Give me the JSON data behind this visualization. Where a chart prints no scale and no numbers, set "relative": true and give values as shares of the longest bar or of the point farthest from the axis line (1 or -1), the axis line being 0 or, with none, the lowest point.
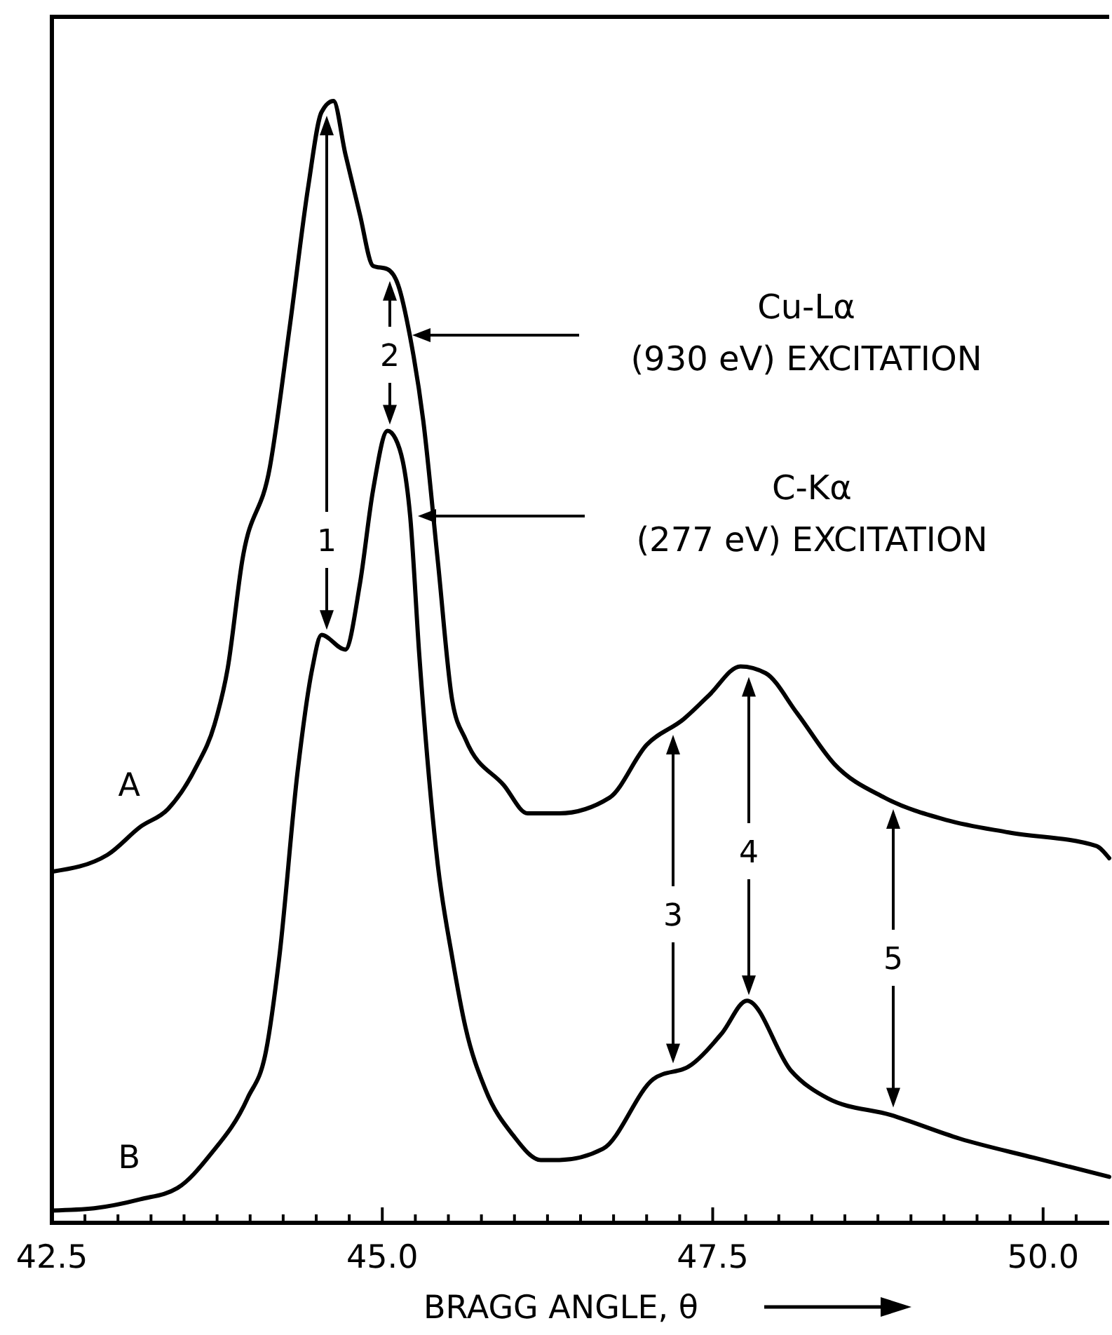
{
  "chart_data": {
    "type": "line",
    "relative": true,
    "xlabel": "BRAGG ANGLE, θ",
    "xlim": [
      42.5,
      50.5
    ],
    "xticks": [
      {
        "value": 42.5,
        "label": "42.5"
      },
      {
        "value": 42.75,
        "label": null
      },
      {
        "value": 43,
        "label": null
      },
      {
        "value": 43.25,
        "label": null
      },
      {
        "value": 43.5,
        "label": null
      },
      {
        "value": 43.75,
        "label": null
      },
      {
        "value": 44,
        "label": null
      },
      {
        "value": 44.25,
        "label": null
      },
      {
        "value": 44.5,
        "label": null
      },
      {
        "value": 44.75,
        "label": null
      },
      {
        "value": 45,
        "label": "45.0"
      },
      {
        "value": 45.25,
        "label": null
      },
      {
        "value": 45.5,
        "label": null
      },
      {
        "value": 45.75,
        "label": null
      },
      {
        "value": 46,
        "label": null
      },
      {
        "value": 46.25,
        "label": null
      },
      {
        "value": 46.5,
        "label": null
      },
      {
        "value": 46.75,
        "label": null
      },
      {
        "value": 47,
        "label": null
      },
      {
        "value": 47.25,
        "label": null
      },
      {
        "value": 47.5,
        "label": "47.5"
      },
      {
        "value": 47.75,
        "label": null
      },
      {
        "value": 48,
        "label": null
      },
      {
        "value": 48.25,
        "label": null
      },
      {
        "value": 48.5,
        "label": null
      },
      {
        "value": 48.75,
        "label": null
      },
      {
        "value": 49,
        "label": null
      },
      {
        "value": 49.25,
        "label": null
      },
      {
        "value": 49.5,
        "label": null
      },
      {
        "value": 49.75,
        "label": null
      },
      {
        "value": 50,
        "label": "50.0"
      },
      {
        "value": 50.25,
        "label": null
      }
    ],
    "grid": false,
    "legend": false,
    "marker": "none",
    "line_style": "solid",
    "series": [
      {
        "name": "A",
        "color": "#000000",
        "x": [
          42.5,
          42.92,
          43.17,
          43.38,
          43.59,
          43.73,
          43.83,
          43.94,
          44.15,
          44.3,
          44.44,
          44.54,
          44.63,
          44.72,
          44.83,
          44.93,
          45.04,
          45.12,
          45.21,
          45.31,
          45.42,
          45.53,
          45.63,
          45.92,
          46.1,
          46.34,
          46.72,
          47.0,
          47.28,
          47.47,
          47.71,
          47.9,
          48.14,
          48.42,
          48.8,
          49.27,
          49.74,
          50.4,
          50.5
        ],
        "values": [
          0.313,
          0.328,
          0.353,
          0.369,
          0.406,
          0.444,
          0.494,
          0.59,
          0.674,
          0.799,
          0.924,
          0.99,
          1,
          0.953,
          0.899,
          0.853,
          0.85,
          0.836,
          0.79,
          0.715,
          0.59,
          0.465,
          0.431,
          0.39,
          0.365,
          0.365,
          0.379,
          0.426,
          0.449,
          0.47,
          0.496,
          0.49,
          0.454,
          0.409,
          0.379,
          0.359,
          0.348,
          0.336,
          0.325
        ]
      },
      {
        "name": "B",
        "color": "#000000",
        "x": [
          42.5,
          42.82,
          43.17,
          43.45,
          43.7,
          43.98,
          44.12,
          44.22,
          44.36,
          44.47,
          44.54,
          44.72,
          44.83,
          44.93,
          45.04,
          45.1,
          45.21,
          45.28,
          45.42,
          45.53,
          45.63,
          45.78,
          45.99,
          46.2,
          46.34,
          46.67,
          47.05,
          47.34,
          47.57,
          47.76,
          48.09,
          48.37,
          48.85,
          49.37,
          49.93,
          50.5
        ],
        "values": [
          0.011,
          0.013,
          0.021,
          0.031,
          0.061,
          0.111,
          0.153,
          0.236,
          0.403,
          0.494,
          0.524,
          0.511,
          0.569,
          0.653,
          0.706,
          0.699,
          0.631,
          0.506,
          0.319,
          0.236,
          0.174,
          0.119,
          0.078,
          0.056,
          0.056,
          0.066,
          0.128,
          0.141,
          0.169,
          0.198,
          0.136,
          0.111,
          0.096,
          0.075,
          0.058,
          0.041
        ]
      }
    ],
    "annotations": [
      "Cu-Lα\n(930 eV) EXCITATION",
      "C-Kα\n(277 eV) EXCITATION",
      "1",
      "2",
      "3",
      "4",
      "5"
    ]
  }
}
